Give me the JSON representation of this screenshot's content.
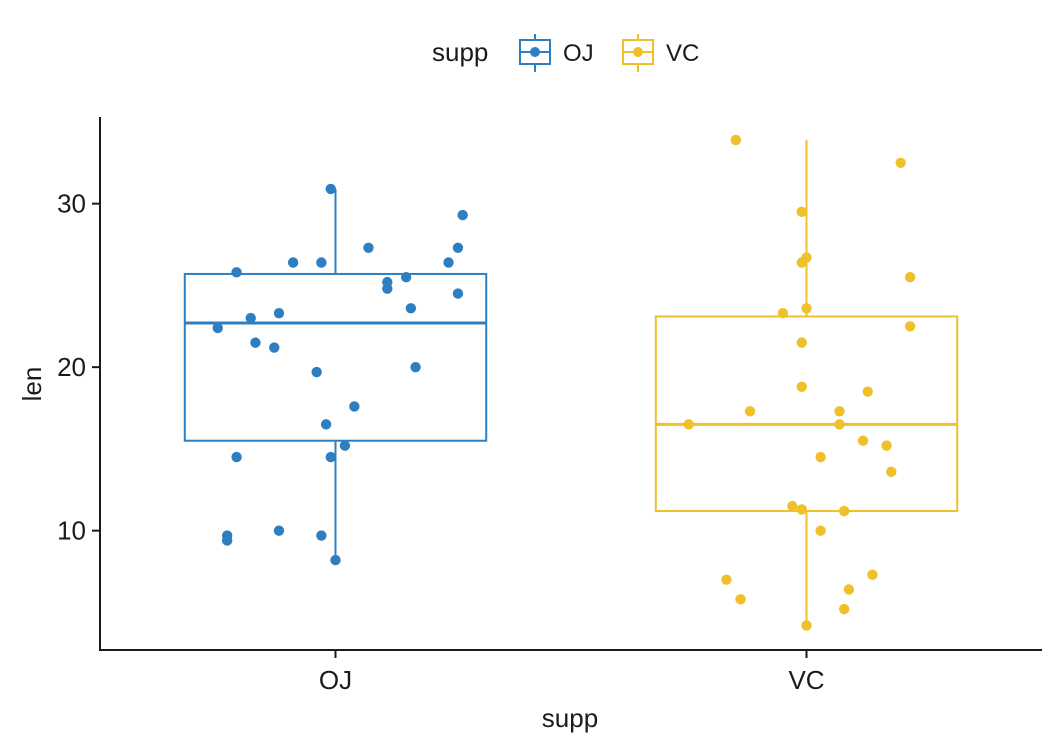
{
  "chart_data": {
    "type": "box",
    "title": "",
    "xlabel": "supp",
    "ylabel": "len",
    "categories": [
      "OJ",
      "VC"
    ],
    "ylim": [
      2.7,
      35.3
    ],
    "yticks": [
      10,
      20,
      30
    ],
    "grid": false,
    "legend": {
      "title": "supp",
      "position": "top",
      "entries": [
        "OJ",
        "VC"
      ]
    },
    "colors": {
      "OJ": "#2E7FC1",
      "VC": "#EFC02A",
      "axis": "#1b1b1b",
      "text": "#1b1b1b"
    },
    "series": [
      {
        "name": "OJ",
        "box": {
          "min": 8.2,
          "q1": 15.5,
          "median": 22.7,
          "q3": 25.7,
          "max": 30.9
        },
        "points": [
          {
            "jitter": -0.01,
            "y": 30.9
          },
          {
            "jitter": 0.27,
            "y": 29.3
          },
          {
            "jitter": 0.07,
            "y": 27.3
          },
          {
            "jitter": 0.26,
            "y": 27.3
          },
          {
            "jitter": -0.09,
            "y": 26.4
          },
          {
            "jitter": -0.03,
            "y": 26.4
          },
          {
            "jitter": 0.24,
            "y": 26.4
          },
          {
            "jitter": -0.21,
            "y": 25.8
          },
          {
            "jitter": 0.15,
            "y": 25.5
          },
          {
            "jitter": 0.11,
            "y": 25.2
          },
          {
            "jitter": 0.11,
            "y": 24.8
          },
          {
            "jitter": 0.26,
            "y": 24.5
          },
          {
            "jitter": 0.16,
            "y": 23.6
          },
          {
            "jitter": -0.12,
            "y": 23.3
          },
          {
            "jitter": -0.18,
            "y": 23.0
          },
          {
            "jitter": -0.25,
            "y": 22.4
          },
          {
            "jitter": -0.17,
            "y": 21.5
          },
          {
            "jitter": -0.13,
            "y": 21.2
          },
          {
            "jitter": 0.17,
            "y": 20.0
          },
          {
            "jitter": -0.04,
            "y": 19.7
          },
          {
            "jitter": 0.04,
            "y": 17.6
          },
          {
            "jitter": -0.02,
            "y": 16.5
          },
          {
            "jitter": 0.02,
            "y": 15.2
          },
          {
            "jitter": -0.21,
            "y": 14.5
          },
          {
            "jitter": -0.01,
            "y": 14.5
          },
          {
            "jitter": -0.12,
            "y": 10.0
          },
          {
            "jitter": -0.23,
            "y": 9.7
          },
          {
            "jitter": -0.03,
            "y": 9.7
          },
          {
            "jitter": -0.23,
            "y": 9.4
          },
          {
            "jitter": 0.0,
            "y": 8.2
          }
        ]
      },
      {
        "name": "VC",
        "box": {
          "min": 4.2,
          "q1": 11.2,
          "median": 16.5,
          "q3": 23.1,
          "max": 33.9
        },
        "points": [
          {
            "jitter": -0.15,
            "y": 33.9
          },
          {
            "jitter": 0.2,
            "y": 32.5
          },
          {
            "jitter": -0.01,
            "y": 29.5
          },
          {
            "jitter": 0.0,
            "y": 26.7
          },
          {
            "jitter": -0.01,
            "y": 26.4
          },
          {
            "jitter": 0.22,
            "y": 25.5
          },
          {
            "jitter": 0.0,
            "y": 23.6
          },
          {
            "jitter": -0.05,
            "y": 23.3
          },
          {
            "jitter": 0.22,
            "y": 22.5
          },
          {
            "jitter": -0.01,
            "y": 21.5
          },
          {
            "jitter": -0.01,
            "y": 18.8
          },
          {
            "jitter": 0.13,
            "y": 18.5
          },
          {
            "jitter": -0.12,
            "y": 17.3
          },
          {
            "jitter": 0.07,
            "y": 17.3
          },
          {
            "jitter": 0.07,
            "y": 16.5
          },
          {
            "jitter": -0.25,
            "y": 16.5
          },
          {
            "jitter": 0.12,
            "y": 15.5
          },
          {
            "jitter": 0.17,
            "y": 15.2
          },
          {
            "jitter": 0.03,
            "y": 14.5
          },
          {
            "jitter": 0.18,
            "y": 13.6
          },
          {
            "jitter": -0.03,
            "y": 11.5
          },
          {
            "jitter": -0.01,
            "y": 11.3
          },
          {
            "jitter": 0.08,
            "y": 11.2
          },
          {
            "jitter": 0.03,
            "y": 10.0
          },
          {
            "jitter": 0.14,
            "y": 7.3
          },
          {
            "jitter": -0.17,
            "y": 7.0
          },
          {
            "jitter": 0.09,
            "y": 6.4
          },
          {
            "jitter": -0.14,
            "y": 5.8
          },
          {
            "jitter": 0.08,
            "y": 5.2
          },
          {
            "jitter": 0.0,
            "y": 4.2
          }
        ]
      }
    ]
  }
}
